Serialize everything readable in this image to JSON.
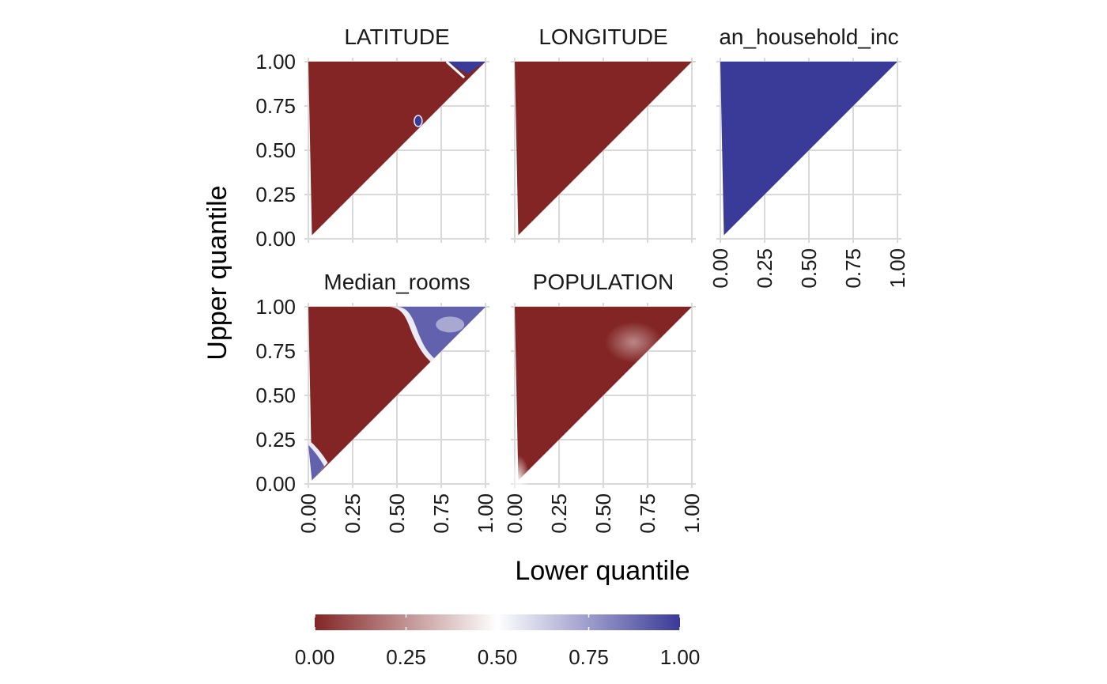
{
  "chart_data": {
    "type": "heatmap",
    "xlabel": "Lower quantile",
    "ylabel": "Upper quantile",
    "xlim": [
      0,
      1
    ],
    "ylim": [
      0,
      1
    ],
    "ticks": [
      "0.00",
      "0.25",
      "0.50",
      "0.75",
      "1.00"
    ],
    "grid": true,
    "legend_position": "bottom",
    "colorbar": {
      "min": 0,
      "max": 1,
      "ticks": [
        "0.00",
        "0.25",
        "0.50",
        "0.75",
        "1.00"
      ],
      "colors": {
        "low": "#832525",
        "mid": "#ffffff",
        "high": "#3a3a98"
      }
    },
    "panels": [
      {
        "title": "LATITUDE",
        "shape": "upper triangle (upper quantile > lower quantile)",
        "dominant_value": 0.0,
        "regions": [
          {
            "lower": [
              0.78,
              1.0
            ],
            "upper": [
              0.93,
              1.0
            ],
            "value": 1.0
          },
          {
            "lower": [
              0.6,
              0.64
            ],
            "upper": [
              0.63,
              0.7
            ],
            "value": 1.0
          }
        ]
      },
      {
        "title": "LONGITUDE",
        "shape": "upper triangle (upper quantile > lower quantile)",
        "dominant_value": 0.0,
        "regions": []
      },
      {
        "title": "an_household_inc",
        "shape": "upper triangle (upper quantile > lower quantile)",
        "dominant_value": 1.0,
        "regions": []
      },
      {
        "title": "Median_rooms",
        "shape": "upper triangle (upper quantile > lower quantile)",
        "dominant_value": 0.0,
        "regions": [
          {
            "description": "upper-right corner, lower > ~0.6, upper > ~0.7",
            "value": 0.9
          },
          {
            "description": "lower-left corner, lower < ~0.1, upper < ~0.2",
            "value": 0.9
          }
        ]
      },
      {
        "title": "POPULATION",
        "shape": "upper triangle (upper quantile > lower quantile)",
        "dominant_value": 0.0,
        "regions": [
          {
            "description": "soft light patch near lower 0.65, upper 0.8",
            "value": 0.3
          },
          {
            "description": "light edge near lower/upper < 0.1",
            "value": 0.4
          }
        ]
      }
    ]
  }
}
